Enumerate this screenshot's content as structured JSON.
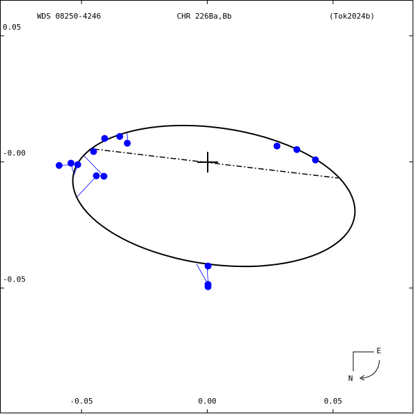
{
  "chart_data": {
    "type": "scatter",
    "titles": [
      "WDS 08250-4246",
      "CHR 226Ba,Bb",
      "(Tok2024b)"
    ],
    "x": [
      -0.0589,
      -0.0542,
      -0.0515,
      -0.0452,
      -0.0441,
      -0.0411,
      -0.0408,
      -0.0348,
      -0.0318,
      0.0277,
      0.0356,
      0.043,
      0.0003,
      0.0003,
      0.0003
    ],
    "series": [
      {
        "color": "#0000ff",
        "values": [
          -0.0014,
          -0.0005,
          -0.0011,
          0.0041,
          -0.0055,
          -0.0057,
          0.0093,
          0.0101,
          0.0074,
          0.0063,
          0.0049,
          0.0008,
          -0.0413,
          -0.0486,
          -0.0495
        ]
      }
    ],
    "xlim": [
      -0.0824,
      0.0819
    ],
    "ylim": [
      -0.0997,
      0.0642
    ],
    "xticks": [
      -0.05,
      {
        "value": 0,
        "label": "0.00"
      },
      0.05
    ],
    "yticks": [
      -0.05,
      {
        "value": 0,
        "label": "-0.00"
      },
      0.05
    ],
    "compass": [
      "E",
      "N"
    ]
  }
}
